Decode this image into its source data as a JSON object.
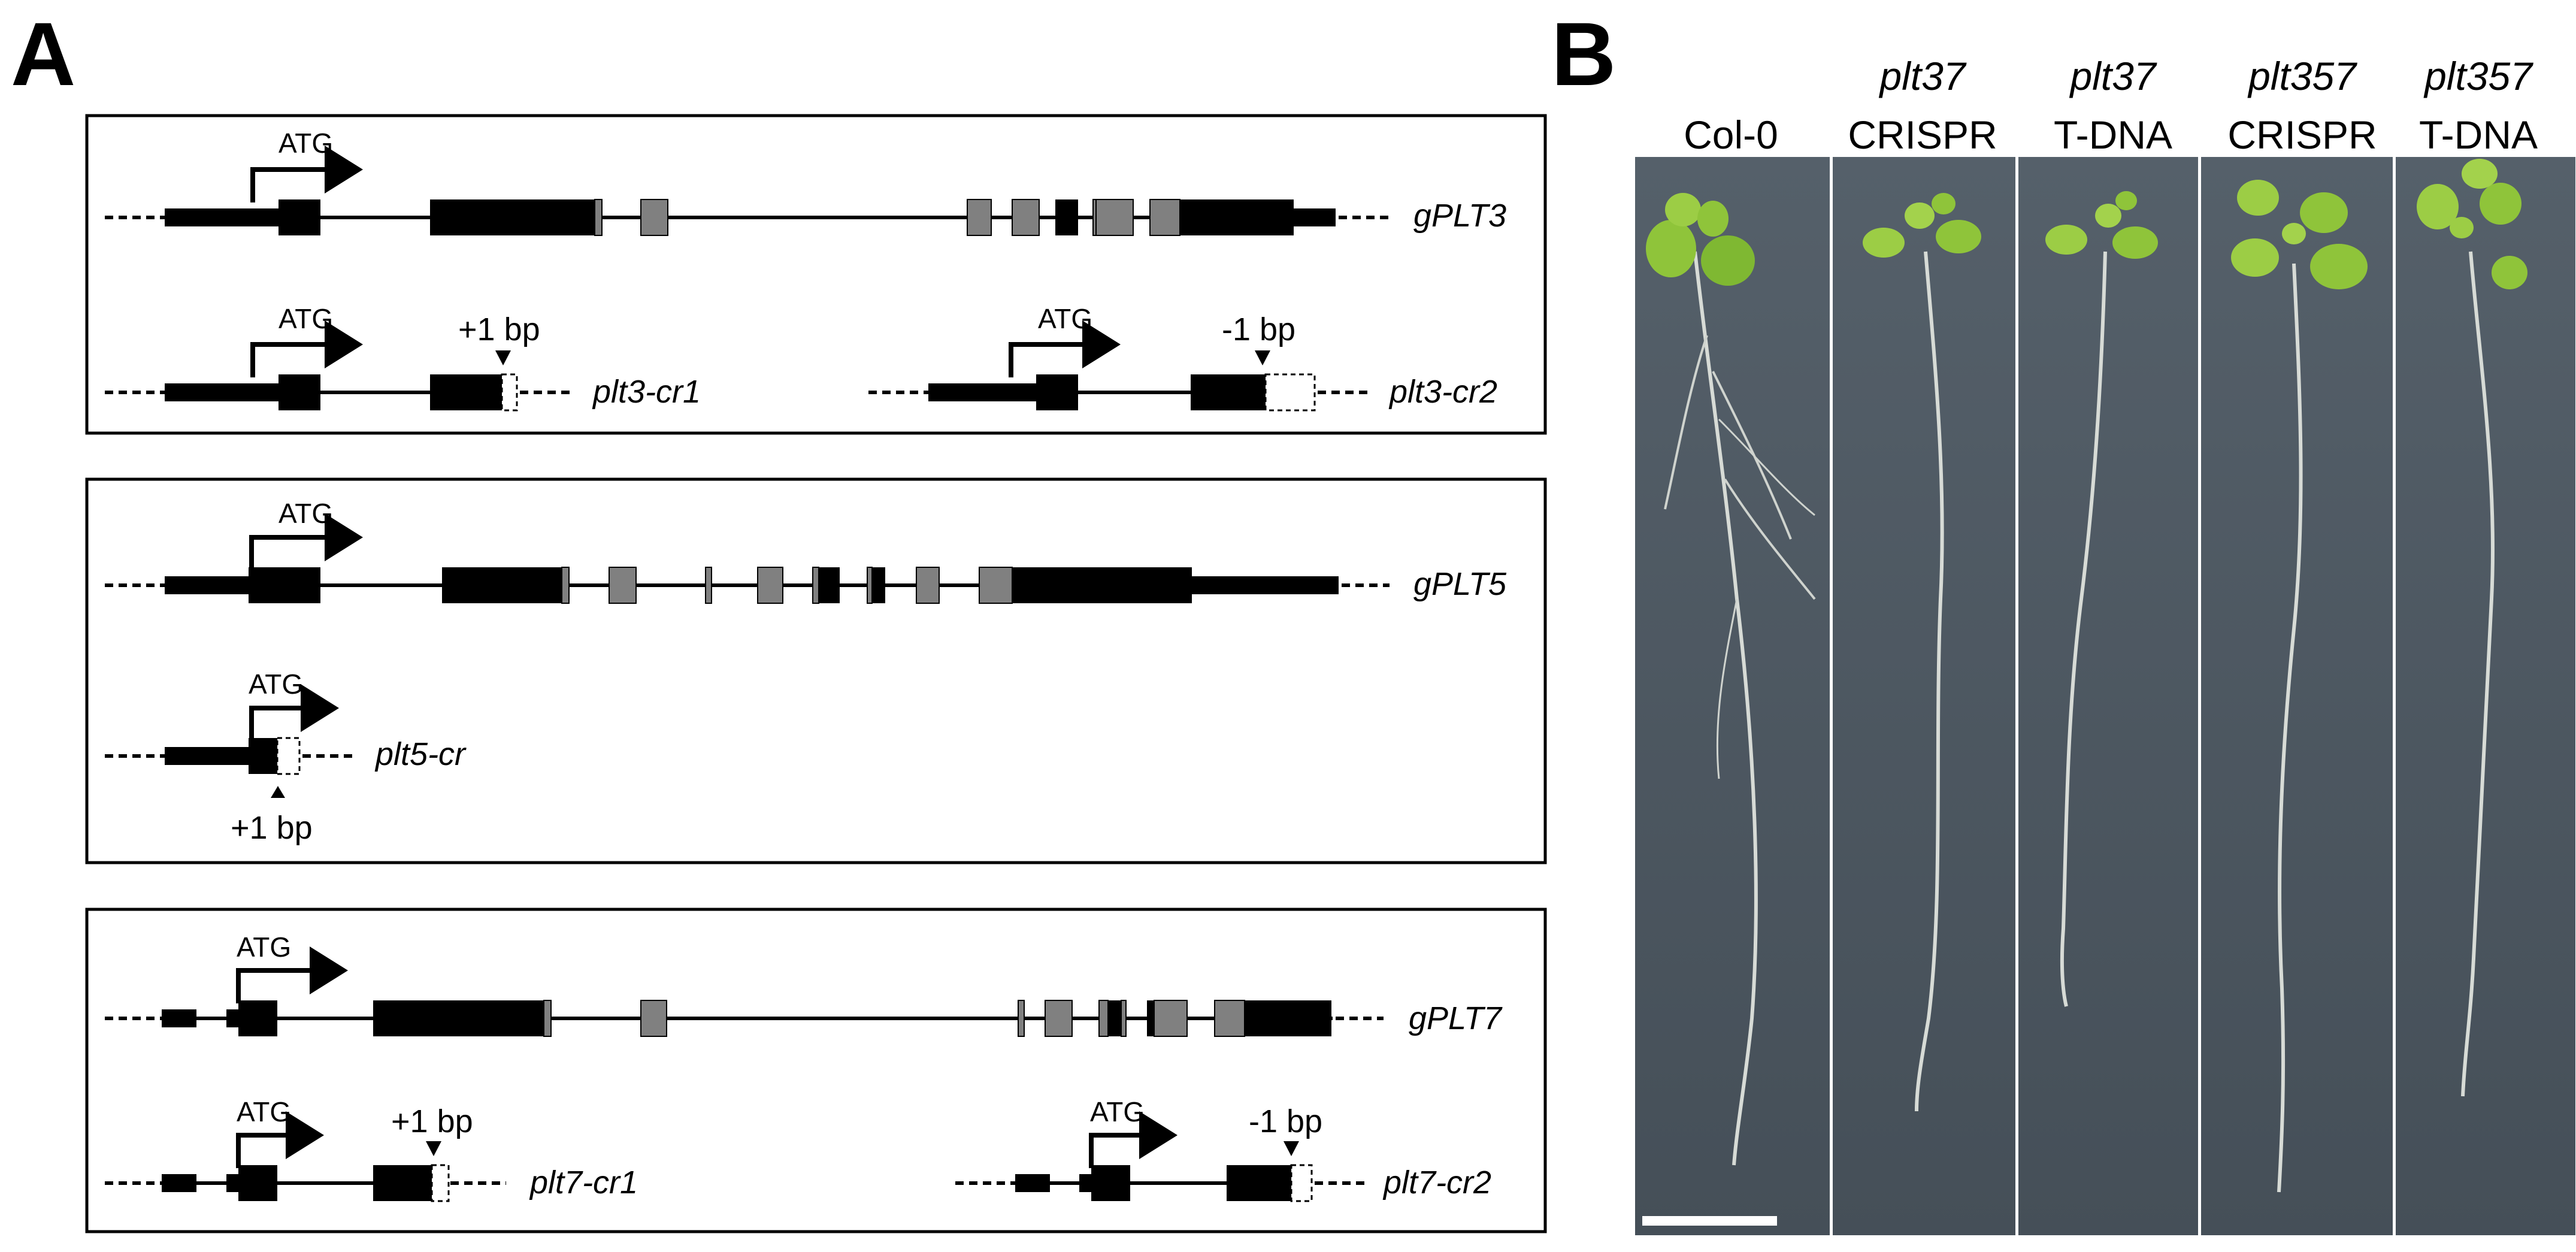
{
  "panel_a": {
    "letter": "A",
    "box1": {
      "gene": {
        "label": "gPLT3",
        "atg": "ATG"
      },
      "mutant1": {
        "label": "plt3-cr1",
        "atg": "ATG",
        "indel": "+1 bp"
      },
      "mutant2": {
        "label": "plt3-cr2",
        "atg": "ATG",
        "indel": "-1 bp"
      }
    },
    "box2": {
      "gene": {
        "label": "gPLT5",
        "atg": "ATG"
      },
      "mutant1": {
        "label": "plt5-cr",
        "atg": "ATG",
        "indel": "+1 bp"
      }
    },
    "box3": {
      "gene": {
        "label": "gPLT7",
        "atg": "ATG"
      },
      "mutant1": {
        "label": "plt7-cr1",
        "atg": "ATG",
        "indel": "+1 bp"
      },
      "mutant2": {
        "label": "plt7-cr2",
        "atg": "ATG",
        "indel": "-1 bp"
      }
    }
  },
  "panel_b": {
    "letter": "B",
    "lanes": [
      {
        "line1": "",
        "line2": "Col-0"
      },
      {
        "line1": "plt37",
        "line2": "CRISPR"
      },
      {
        "line1": "plt37",
        "line2": "T-DNA"
      },
      {
        "line1": "plt357",
        "line2": "CRISPR"
      },
      {
        "line1": "plt357",
        "line2": "T-DNA"
      }
    ]
  },
  "colors": {
    "exon_coding": "#000000",
    "exon_grey": "#808080",
    "plate_background": "#4a5560",
    "leaf": "#8fc43a",
    "root": "#d7dbd6"
  }
}
